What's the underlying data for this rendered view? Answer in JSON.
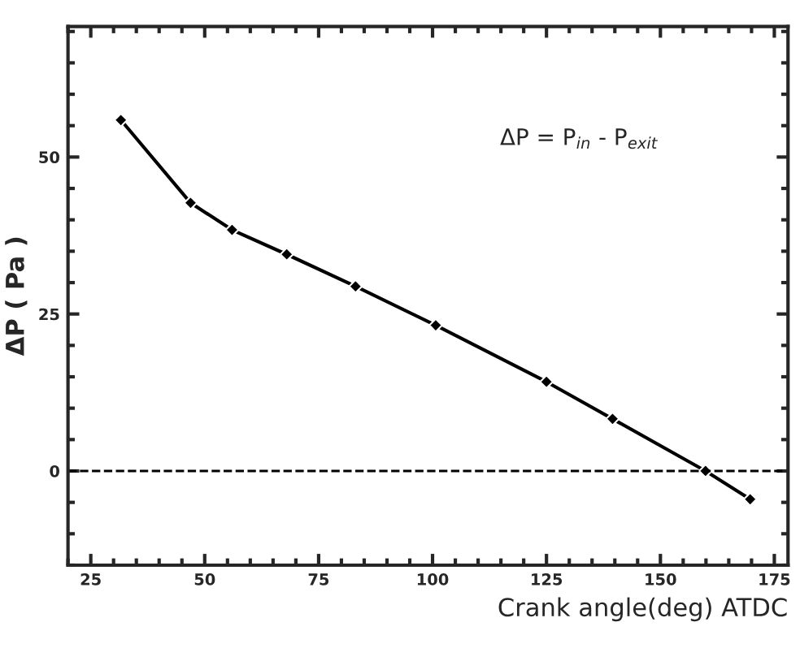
{
  "chart_data": {
    "type": "line",
    "xlabel": "Crank angle(deg) ATDC",
    "ylabel": "ΔP ( Pa )",
    "x": [
      31.6,
      46.9,
      56.0,
      68.0,
      83.1,
      100.7,
      125.0,
      139.5,
      159.9,
      169.7
    ],
    "series": [
      {
        "color": "#000000",
        "values": [
          55.9,
          42.7,
          38.4,
          34.5,
          29.4,
          23.2,
          14.2,
          8.3,
          0.0,
          -4.5
        ]
      }
    ],
    "xlim": [
      20,
      178
    ],
    "ylim": [
      -15,
      70.8
    ],
    "xticks": [
      25,
      50,
      75,
      100,
      125,
      150,
      175
    ],
    "yticks": [
      0,
      25,
      50
    ],
    "marker": "diamond",
    "line_style": "solid",
    "grid": false,
    "legend": false,
    "ref_lines": [
      {
        "axis": "y",
        "value": 0,
        "color": "#000000",
        "line_style": "dashed"
      }
    ],
    "annotations": [
      {
        "text": "ΔP = P$_{in}$ - P$_{exit}$"
      }
    ]
  }
}
